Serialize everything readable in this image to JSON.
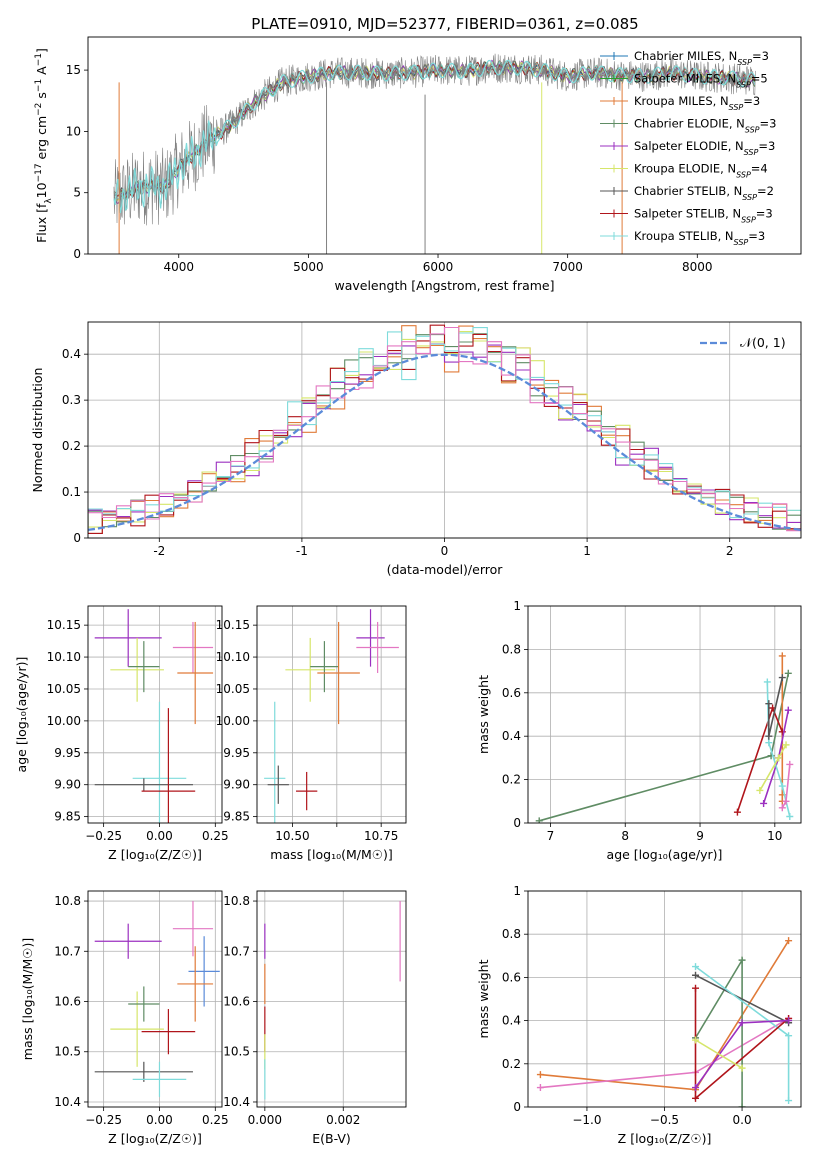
{
  "figure_title": "PLATE=0910, MJD=52377, FIBERID=0361, z=0.085",
  "chart_data": [
    {
      "id": "spectrum",
      "type": "line",
      "xlabel": "wavelength [Angstrom, rest frame]",
      "ylabel_parts": [
        "Flux [f",
        "λ",
        "10",
        "−17",
        " erg cm",
        "−2",
        " s",
        "−1",
        " A",
        "−1",
        "]"
      ],
      "xlim": [
        3300,
        8800
      ],
      "ylim": [
        0,
        17.7
      ],
      "xticks": [
        4000,
        5000,
        6000,
        7000,
        8000
      ],
      "yticks": [
        0,
        5,
        10,
        15
      ],
      "grid": false,
      "legend_position": "right",
      "series": [
        {
          "name": "Chabrier MILES",
          "nssp": "3",
          "color": "#1f77b4"
        },
        {
          "name": "Salpeter MILES",
          "nssp": "5",
          "color": "#2ca02c"
        },
        {
          "name": "Kroupa MILES",
          "nssp": "3",
          "color": "#e07b39"
        },
        {
          "name": "Chabrier ELODIE",
          "nssp": "3",
          "color": "#5f8c64"
        },
        {
          "name": "Salpeter ELODIE",
          "nssp": "3",
          "color": "#9b30c0"
        },
        {
          "name": "Kroupa ELODIE",
          "nssp": "4",
          "color": "#d6e66a"
        },
        {
          "name": "Chabrier STELIB",
          "nssp": "2",
          "color": "#555555"
        },
        {
          "name": "Salpeter STELIB",
          "nssp": "3",
          "color": "#b0151b"
        },
        {
          "name": "Kroupa STELIB",
          "nssp": "3",
          "color": "#7fdbdb"
        }
      ],
      "continuum_x": [
        3500,
        3700,
        3900,
        4000,
        4200,
        4400,
        4600,
        4800,
        5000,
        5200,
        5400,
        5600,
        5800,
        6000,
        6200,
        6400,
        6600,
        6800,
        7000,
        7200,
        7400,
        7600,
        7800,
        8000,
        8200,
        8400
      ],
      "continuum_y": [
        4.5,
        5.5,
        5.5,
        7,
        9,
        10.5,
        12.5,
        14,
        14.5,
        14.8,
        14.8,
        14.7,
        14.8,
        15,
        14.9,
        15.2,
        15.2,
        15,
        14.5,
        14.8,
        14.6,
        14.5,
        14.8,
        14.5,
        14.4,
        14.2
      ],
      "data_color": "#808080",
      "model_color": "#7fdbdb"
    },
    {
      "id": "residuals",
      "type": "histogram",
      "xlabel": "(data-model)/error",
      "ylabel": "Normed distribution",
      "xlim": [
        -2.5,
        2.5
      ],
      "ylim": [
        0,
        0.47
      ],
      "xticks": [
        -2,
        -1,
        0,
        1,
        2
      ],
      "yticks": [
        0.0,
        0.1,
        0.2,
        0.3,
        0.4
      ],
      "grid": true,
      "legend_position": "top-right",
      "normal_curve": {
        "label": "𝒩(0, 1)",
        "color": "#5b8bd9"
      }
    },
    {
      "id": "age_vs_Z",
      "type": "scatter",
      "xlabel": "Z [log₁₀(Z/Z☉)]",
      "ylabel": "age  [log₁₀(age/yr)]",
      "xlim": [
        -0.32,
        0.28
      ],
      "ylim": [
        9.84,
        10.18
      ],
      "xticks": [
        -0.25,
        0.0,
        0.25
      ],
      "xtick_labels": [
        "−0.25",
        "0.00",
        "0.25"
      ],
      "yticks": [
        9.85,
        9.9,
        9.95,
        10.0,
        10.05,
        10.1,
        10.15
      ],
      "ytick_labels": [
        "9.85",
        "9.90",
        "9.95",
        "10.00",
        "10.05",
        "10.10",
        "10.15"
      ],
      "grid": true,
      "points": [
        {
          "x": -0.14,
          "y": 10.13,
          "xerr": 0.15,
          "yerr": 0.045,
          "color": "#9b30c0"
        },
        {
          "x": -0.1,
          "y": 10.08,
          "xerr": 0.12,
          "yerr": 0.05,
          "color": "#d6e66a"
        },
        {
          "x": -0.07,
          "y": 10.085,
          "xerr": 0.07,
          "yerr": 0.04,
          "color": "#5f8c64"
        },
        {
          "x": 0.15,
          "y": 10.115,
          "xerr": 0.09,
          "yerr": 0.04,
          "color": "#e377c2"
        },
        {
          "x": 0.16,
          "y": 10.075,
          "xerr": 0.08,
          "yerr": 0.08,
          "color": "#e07b39"
        },
        {
          "x": 0.0,
          "y": 9.91,
          "xerr": 0.12,
          "yerr": 0.12,
          "color": "#7fdbdb"
        },
        {
          "x": -0.07,
          "y": 9.9,
          "xerr": 0.22,
          "yerr": 0.01,
          "color": "#555555"
        },
        {
          "x": 0.04,
          "y": 9.89,
          "xerr": 0.12,
          "yerr": 0.13,
          "color": "#b0151b"
        }
      ]
    },
    {
      "id": "age_vs_mass",
      "type": "scatter",
      "xlabel": "mass [log₁₀(M/M☉)]",
      "ylabel": "",
      "xlim": [
        10.4,
        10.82
      ],
      "ylim": [
        9.84,
        10.18
      ],
      "xticks": [
        10.5,
        10.625,
        10.75
      ],
      "xtick_labels": [
        "10.50",
        "",
        "10.75"
      ],
      "yticks": [
        9.85,
        9.9,
        9.95,
        10.0,
        10.05,
        10.1,
        10.15
      ],
      "ytick_labels": [
        "9.85",
        "9.90",
        "9.95",
        "10.00",
        "10.05",
        "10.10",
        "10.15"
      ],
      "grid": true,
      "points": [
        {
          "x": 10.72,
          "y": 10.13,
          "xerr": 0.04,
          "yerr": 0.045,
          "color": "#9b30c0"
        },
        {
          "x": 10.55,
          "y": 10.08,
          "xerr": 0.07,
          "yerr": 0.05,
          "color": "#d6e66a"
        },
        {
          "x": 10.59,
          "y": 10.085,
          "xerr": 0.04,
          "yerr": 0.04,
          "color": "#5f8c64"
        },
        {
          "x": 10.74,
          "y": 10.115,
          "xerr": 0.06,
          "yerr": 0.04,
          "color": "#e377c2"
        },
        {
          "x": 10.63,
          "y": 10.075,
          "xerr": 0.06,
          "yerr": 0.08,
          "color": "#e07b39"
        },
        {
          "x": 10.45,
          "y": 9.91,
          "xerr": 0.03,
          "yerr": 0.12,
          "color": "#7fdbdb"
        },
        {
          "x": 10.46,
          "y": 9.9,
          "xerr": 0.03,
          "yerr": 0.03,
          "color": "#555555"
        },
        {
          "x": 10.54,
          "y": 9.89,
          "xerr": 0.03,
          "yerr": 0.03,
          "color": "#b0151b"
        }
      ]
    },
    {
      "id": "weight_vs_age",
      "type": "line",
      "xlabel": "age  [log₁₀(age/yr)]",
      "ylabel": "mass weight",
      "xlim": [
        6.7,
        10.35
      ],
      "ylim": [
        0,
        1.0
      ],
      "xticks": [
        7,
        8,
        9,
        10
      ],
      "yticks": [
        0.0,
        0.2,
        0.4,
        0.6,
        0.8,
        1.0
      ],
      "grid": true,
      "series": [
        {
          "color": "#5f8c64",
          "x": [
            6.85,
            9.95,
            10.18
          ],
          "y": [
            0.01,
            0.31,
            0.69
          ]
        },
        {
          "color": "#e07b39",
          "x": [
            10.1,
            10.1,
            10.1
          ],
          "y": [
            0.77,
            0.1,
            0.13
          ]
        },
        {
          "color": "#b0151b",
          "x": [
            9.5,
            9.97,
            10.1
          ],
          "y": [
            0.05,
            0.53,
            0.42
          ]
        },
        {
          "color": "#9b30c0",
          "x": [
            9.85,
            10.05,
            10.18
          ],
          "y": [
            0.09,
            0.3,
            0.52
          ]
        },
        {
          "color": "#7fdbdb",
          "x": [
            9.9,
            9.92,
            10.1,
            10.2
          ],
          "y": [
            0.65,
            0.37,
            0.17,
            0.03
          ]
        },
        {
          "color": "#555555",
          "x": [
            9.92,
            9.92,
            10.1
          ],
          "y": [
            0.55,
            0.4,
            0.67
          ]
        },
        {
          "color": "#d6e66a",
          "x": [
            9.8,
            10.05,
            10.15
          ],
          "y": [
            0.15,
            0.3,
            0.36
          ]
        },
        {
          "color": "#e377c2",
          "x": [
            10.1,
            10.15,
            10.2
          ],
          "y": [
            0.07,
            0.1,
            0.27
          ]
        }
      ]
    },
    {
      "id": "mass_vs_Z",
      "type": "scatter",
      "xlabel": "Z [log₁₀(Z/Z☉)]",
      "ylabel": "mass [log₁₀(M/M☉)]",
      "xlim": [
        -0.32,
        0.28
      ],
      "ylim": [
        10.39,
        10.82
      ],
      "xticks": [
        -0.25,
        0.0,
        0.25
      ],
      "xtick_labels": [
        "−0.25",
        "0.00",
        "0.25"
      ],
      "yticks": [
        10.4,
        10.5,
        10.6,
        10.7,
        10.8
      ],
      "ytick_labels": [
        "10.4",
        "10.5",
        "10.6",
        "10.7",
        "10.8"
      ],
      "grid": true,
      "points": [
        {
          "x": -0.14,
          "y": 10.72,
          "xerr": 0.15,
          "yerr": 0.035,
          "color": "#9b30c0"
        },
        {
          "x": 0.15,
          "y": 10.745,
          "xerr": 0.09,
          "yerr": 0.055,
          "color": "#e377c2"
        },
        {
          "x": 0.2,
          "y": 10.66,
          "xerr": 0.07,
          "yerr": 0.07,
          "color": "#5b8bd9"
        },
        {
          "x": 0.16,
          "y": 10.635,
          "xerr": 0.08,
          "yerr": 0.075,
          "color": "#e07b39"
        },
        {
          "x": -0.1,
          "y": 10.545,
          "xerr": 0.12,
          "yerr": 0.075,
          "color": "#d6e66a"
        },
        {
          "x": -0.07,
          "y": 10.595,
          "xerr": 0.07,
          "yerr": 0.035,
          "color": "#5f8c64"
        },
        {
          "x": 0.04,
          "y": 10.54,
          "xerr": 0.12,
          "yerr": 0.045,
          "color": "#b0151b"
        },
        {
          "x": -0.07,
          "y": 10.46,
          "xerr": 0.22,
          "yerr": 0.02,
          "color": "#555555"
        },
        {
          "x": 0.0,
          "y": 10.445,
          "xerr": 0.12,
          "yerr": 0.035,
          "color": "#7fdbdb"
        }
      ]
    },
    {
      "id": "mass_vs_ebv",
      "type": "scatter",
      "xlabel": "E(B-V)",
      "ylabel": "",
      "xlim": [
        -0.0002,
        0.0036
      ],
      "ylim": [
        10.39,
        10.82
      ],
      "xticks": [
        0.0,
        0.002
      ],
      "xtick_labels": [
        "0.000",
        "0.002"
      ],
      "yticks": [
        10.4,
        10.5,
        10.6,
        10.7,
        10.8
      ],
      "ytick_labels": [
        "10.4",
        "10.5",
        "10.6",
        "10.7",
        "10.8"
      ],
      "grid": true,
      "points": [
        {
          "x": 0.0,
          "y": 10.72,
          "xerr": 0,
          "yerr": 0.035,
          "color": "#9b30c0"
        },
        {
          "x": 0.00345,
          "y": 10.72,
          "xerr": 0,
          "yerr": 0.08,
          "color": "#e377c2"
        },
        {
          "x": 0.0,
          "y": 10.635,
          "xerr": 0,
          "yerr": 0.04,
          "color": "#e07b39"
        },
        {
          "x": 0.0,
          "y": 10.545,
          "xerr": 0,
          "yerr": 0.045,
          "color": "#b0151b"
        },
        {
          "x": 0.0,
          "y": 10.5,
          "xerr": 0,
          "yerr": 0.035,
          "color": "#d6e66a"
        },
        {
          "x": 0.0,
          "y": 10.445,
          "xerr": 0,
          "yerr": 0.04,
          "color": "#7fdbdb"
        }
      ]
    },
    {
      "id": "weight_vs_Z",
      "type": "line",
      "xlabel": "Z [log₁₀(Z/Z☉)]",
      "ylabel": "mass weight",
      "xlim": [
        -1.38,
        0.38
      ],
      "ylim": [
        0,
        1.0
      ],
      "xticks": [
        -1.0,
        -0.5,
        0.0
      ],
      "xtick_labels": [
        "−1.0",
        "−0.5",
        "0.0"
      ],
      "yticks": [
        0.0,
        0.2,
        0.4,
        0.6,
        0.8,
        1.0
      ],
      "grid": true,
      "series": [
        {
          "color": "#e07b39",
          "x": [
            -1.3,
            -0.3,
            0.3
          ],
          "y": [
            0.15,
            0.08,
            0.77
          ]
        },
        {
          "color": "#e377c2",
          "x": [
            -1.3,
            -0.3,
            0.3
          ],
          "y": [
            0.09,
            0.16,
            0.41
          ]
        },
        {
          "color": "#5f8c64",
          "x": [
            -0.3,
            0.0,
            0.0
          ],
          "y": [
            0.32,
            0.68,
            0.0
          ]
        },
        {
          "color": "#555555",
          "x": [
            -0.3,
            0.3
          ],
          "y": [
            0.61,
            0.39
          ]
        },
        {
          "color": "#7fdbdb",
          "x": [
            -0.3,
            0.3,
            0.3
          ],
          "y": [
            0.65,
            0.33,
            0.03
          ]
        },
        {
          "color": "#b0151b",
          "x": [
            -0.3,
            -0.3,
            0.3
          ],
          "y": [
            0.55,
            0.04,
            0.41
          ]
        },
        {
          "color": "#9b30c0",
          "x": [
            -0.3,
            0.0,
            0.3
          ],
          "y": [
            0.09,
            0.39,
            0.4
          ]
        },
        {
          "color": "#d6e66a",
          "x": [
            -0.3,
            0.0
          ],
          "y": [
            0.31,
            0.18
          ]
        }
      ]
    }
  ]
}
